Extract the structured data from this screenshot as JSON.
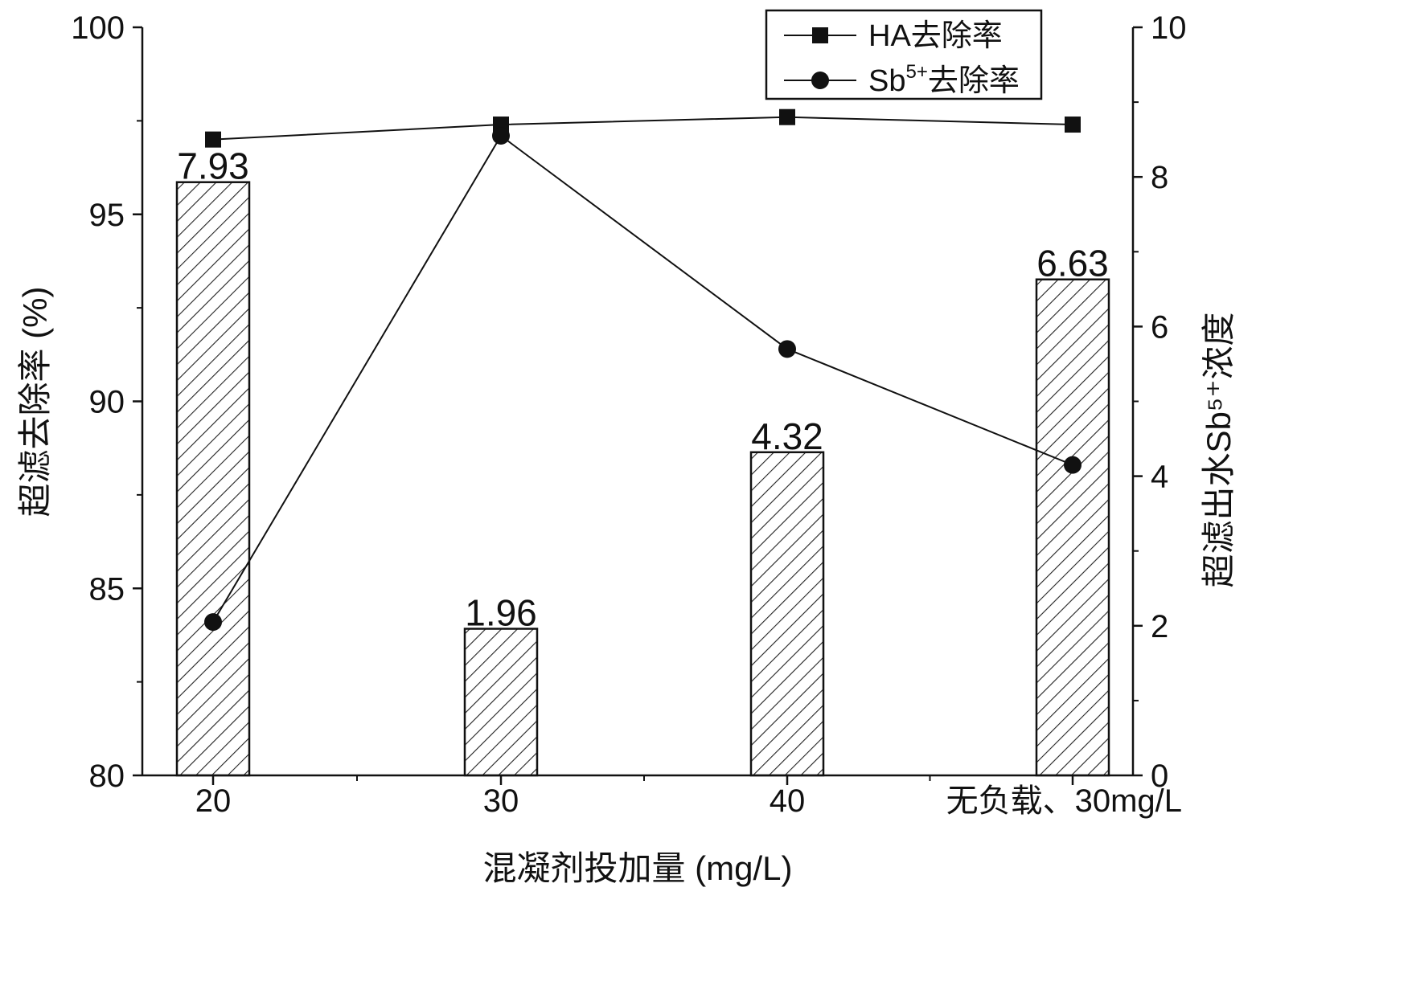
{
  "chart_data": {
    "type": "bar",
    "categories": [
      "20",
      "30",
      "40",
      "无负载、30mg/L"
    ],
    "xlabel": "混凝剂投加量 (mg/L)",
    "ylabel_left": "超滤去除率 (%)",
    "ylabel_right": "超滤出水Sb⁵⁺浓度",
    "ylim_left": [
      80,
      100
    ],
    "ylim_right": [
      0,
      10
    ],
    "yticks_left": [
      80,
      85,
      90,
      95,
      100
    ],
    "yticks_right": [
      0,
      2,
      4,
      6,
      8,
      10
    ],
    "bars": {
      "axis": "right",
      "values": [
        7.93,
        1.96,
        4.32,
        6.63
      ],
      "labels": [
        "7.93",
        "1.96",
        "4.32",
        "6.63"
      ],
      "fill": "hatch"
    },
    "series": [
      {
        "name": "HA去除率",
        "axis": "left",
        "marker": "square",
        "values": [
          97.0,
          97.4,
          97.6,
          97.4
        ]
      },
      {
        "name": "Sb5+去除率",
        "axis": "left",
        "marker": "circle",
        "values": [
          84.1,
          97.1,
          91.4,
          88.3
        ]
      }
    ],
    "legend": {
      "position": "top-right"
    },
    "grid": false
  }
}
